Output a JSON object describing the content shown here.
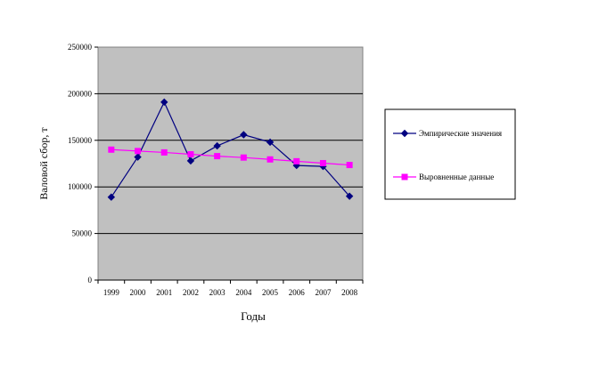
{
  "chart_data": {
    "type": "line",
    "title": "",
    "xlabel": "Годы",
    "ylabel": "Валовой сбор, т",
    "categories": [
      "1999",
      "2000",
      "2001",
      "2002",
      "2003",
      "2004",
      "2005",
      "2006",
      "2007",
      "2008"
    ],
    "ylim": [
      0,
      250000
    ],
    "yticks": [
      "0",
      "50000",
      "100000",
      "150000",
      "200000",
      "250000"
    ],
    "ytick_values": [
      0,
      50000,
      100000,
      150000,
      200000,
      250000
    ],
    "grid": true,
    "plot_background": "#c0c0c0",
    "legend_position": "right",
    "series": [
      {
        "name": "Эмпирические значения",
        "color": "#000080",
        "marker": "diamond",
        "values": [
          89000,
          132000,
          191000,
          128000,
          144000,
          156000,
          148000,
          123000,
          122000,
          90000
        ]
      },
      {
        "name": "Выровненные данные",
        "color": "#ff00ff",
        "marker": "square",
        "values": [
          140000,
          138500,
          137000,
          135000,
          133000,
          131500,
          129500,
          127500,
          125500,
          123500
        ]
      }
    ]
  }
}
